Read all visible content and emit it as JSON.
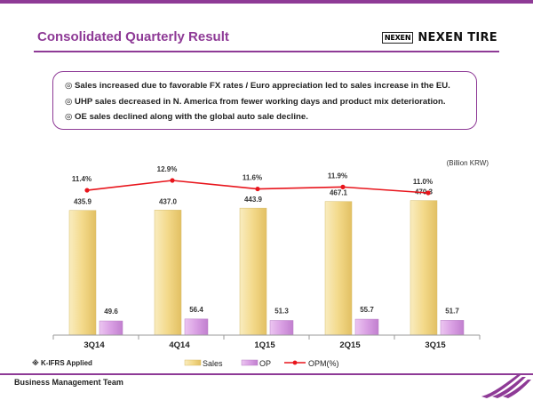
{
  "header": {
    "title": "Consolidated Quarterly Result",
    "logo_badge": "NEXEN",
    "logo_text": "NEXEN TIRE"
  },
  "bullets": [
    "◎ Sales increased due to favorable FX rates / Euro appreciation led to sales increase in the EU.",
    "◎ UHP sales decreased in N. America from fewer working days and product mix deterioration.",
    "◎ OE sales declined along with the global auto sale decline."
  ],
  "footnote": "※ K-IFRS Applied",
  "footer": "Business Management Team",
  "colors": {
    "accent": "#8e3a96",
    "sales_fill": "#f3dd91",
    "op_fill": "#d79ee2",
    "opm_line": "#e8151c"
  },
  "chart_data": {
    "type": "bar",
    "title": "",
    "unit_label": "(Billion KRW)",
    "categories": [
      "3Q14",
      "4Q14",
      "1Q15",
      "2Q15",
      "3Q15"
    ],
    "series": [
      {
        "name": "Sales",
        "type": "bar",
        "values": [
          435.9,
          437.0,
          443.9,
          467.1,
          470.3
        ],
        "labels": [
          "435.9",
          "437.0",
          "443.9",
          "467.1",
          "470.3"
        ]
      },
      {
        "name": "OP",
        "type": "bar",
        "values": [
          49.6,
          56.4,
          51.3,
          55.7,
          51.7
        ],
        "labels": [
          "49.6",
          "56.4",
          "51.3",
          "55.7",
          "51.7"
        ]
      },
      {
        "name": "OPM(%)",
        "type": "line",
        "values": [
          11.4,
          12.9,
          11.6,
          11.9,
          11.0
        ],
        "labels": [
          "11.4%",
          "12.9%",
          "11.6%",
          "11.9%",
          "11.0%"
        ]
      }
    ],
    "legend": [
      "Sales",
      "OP",
      "OPM(%)"
    ],
    "legend_position": "bottom",
    "ylim": [
      0,
      550
    ],
    "opm_ylim": [
      0,
      14
    ],
    "grid": false
  }
}
